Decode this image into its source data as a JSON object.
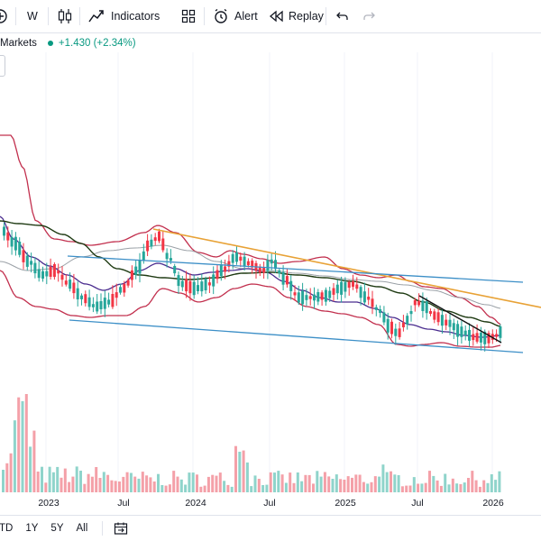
{
  "toolbar": {
    "interval": "W",
    "indicators_label": "Indicators",
    "alert_label": "Alert",
    "replay_label": "Replay",
    "icons": [
      "add-icon",
      "candles-icon",
      "indicators-icon",
      "templates-icon",
      "alert-icon",
      "replay-icon",
      "undo-icon",
      "redo-icon"
    ]
  },
  "legend": {
    "title": "Markets",
    "change": "+1.430 (+2.34%)",
    "change_color": "#089981"
  },
  "colors": {
    "up": "#26a69a",
    "down": "#f23645",
    "bollinger": "#c2304e",
    "ma_dark": "#1e3a12",
    "ma_purple": "#4b2d8f",
    "ma_gray": "#9aa0a6",
    "channel": "#3c8fc7",
    "trend_orange": "#e8a236",
    "trend_black": "#111111"
  },
  "time_axis": [
    "2023",
    "Jul",
    "2024",
    "Jul",
    "2025",
    "Jul",
    "2026"
  ],
  "bottom_bar": {
    "ranges": [
      "TD",
      "1Y",
      "5Y",
      "All"
    ],
    "calendar_icon": "calendar-range-icon"
  },
  "chart_data": {
    "type": "candlestick",
    "indicators": [
      "Bollinger Bands",
      "Moving Averages",
      "Volume"
    ],
    "price_trend": "downtrend inside descending channel",
    "volume_trend": "high volume early 2023, lower afterwards"
  }
}
